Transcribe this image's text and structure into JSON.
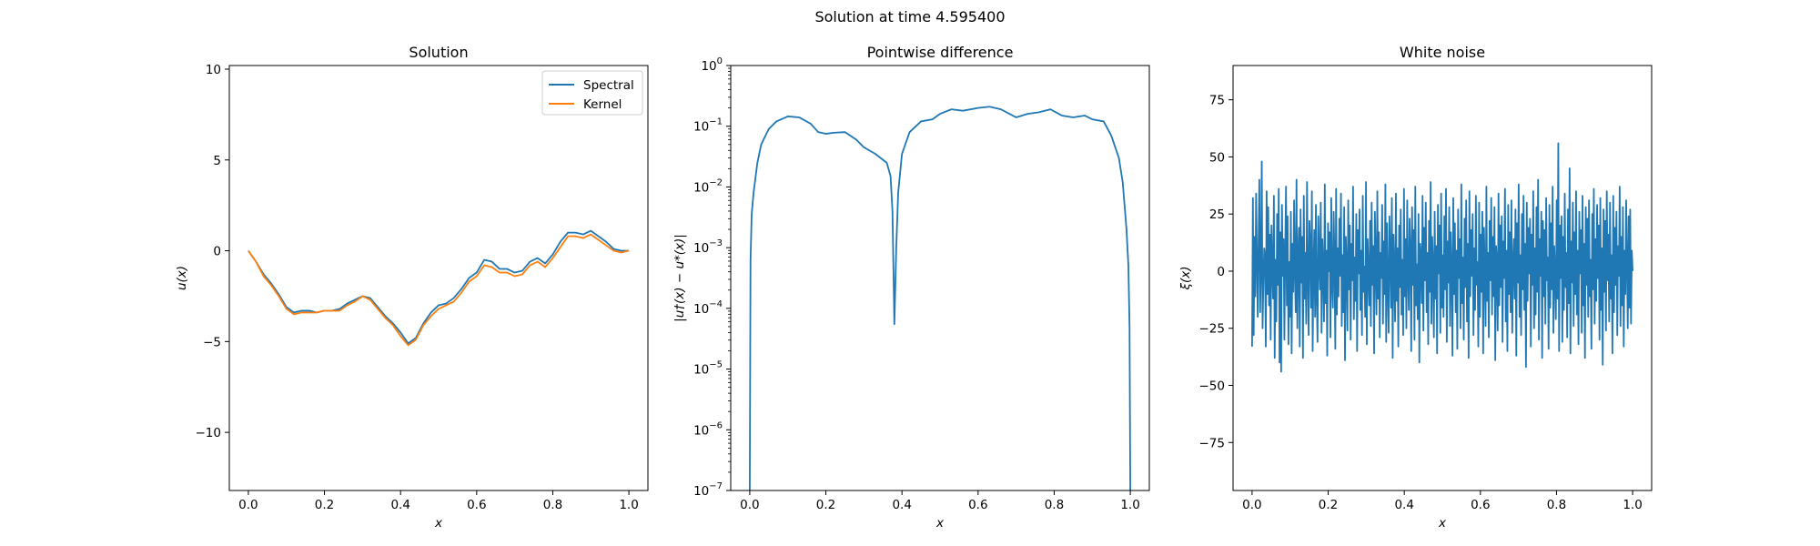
{
  "suptitle": "Solution at time 4.595400",
  "colors": {
    "spectral": "#1f77b4",
    "kernel": "#ff7f0e",
    "noise": "#1f77b4",
    "diff": "#1f77b4"
  },
  "chart_data": [
    {
      "type": "line",
      "title": "Solution",
      "xlabel": "x",
      "ylabel": "u(x)",
      "xlim": [
        -0.05,
        1.05
      ],
      "ylim": [
        -13.2,
        10.2
      ],
      "xticks": [
        "0.0",
        "0.2",
        "0.4",
        "0.6",
        "0.8",
        "1.0"
      ],
      "yticks": [
        "10",
        "5",
        "0",
        "−5",
        "−10"
      ],
      "legend_position": "top-right",
      "x": [
        0.0,
        0.02,
        0.04,
        0.06,
        0.08,
        0.1,
        0.12,
        0.14,
        0.16,
        0.18,
        0.2,
        0.22,
        0.24,
        0.26,
        0.28,
        0.3,
        0.32,
        0.34,
        0.36,
        0.38,
        0.4,
        0.42,
        0.44,
        0.46,
        0.48,
        0.5,
        0.52,
        0.54,
        0.56,
        0.58,
        0.6,
        0.62,
        0.64,
        0.66,
        0.68,
        0.7,
        0.72,
        0.74,
        0.76,
        0.78,
        0.8,
        0.82,
        0.84,
        0.86,
        0.88,
        0.9,
        0.92,
        0.94,
        0.96,
        0.98,
        1.0
      ],
      "series": [
        {
          "name": "Spectral",
          "values": [
            0.0,
            -0.6,
            -1.3,
            -1.8,
            -2.4,
            -3.1,
            -3.4,
            -3.3,
            -3.3,
            -3.4,
            -3.3,
            -3.3,
            -3.2,
            -2.9,
            -2.7,
            -2.5,
            -2.6,
            -3.1,
            -3.6,
            -4.0,
            -4.5,
            -5.1,
            -4.8,
            -4.0,
            -3.4,
            -3.0,
            -2.9,
            -2.6,
            -2.1,
            -1.5,
            -1.2,
            -0.5,
            -0.6,
            -1.0,
            -1.0,
            -1.2,
            -1.1,
            -0.6,
            -0.4,
            -0.7,
            -0.2,
            0.5,
            1.0,
            1.0,
            0.9,
            1.1,
            0.8,
            0.5,
            0.1,
            0.0,
            0.0
          ]
        },
        {
          "name": "Kernel",
          "values": [
            0.0,
            -0.6,
            -1.4,
            -1.9,
            -2.5,
            -3.2,
            -3.5,
            -3.4,
            -3.4,
            -3.4,
            -3.3,
            -3.3,
            -3.3,
            -3.0,
            -2.8,
            -2.5,
            -2.7,
            -3.2,
            -3.7,
            -4.1,
            -4.7,
            -5.2,
            -4.9,
            -4.1,
            -3.6,
            -3.2,
            -3.0,
            -2.8,
            -2.3,
            -1.7,
            -1.4,
            -0.8,
            -0.9,
            -1.2,
            -1.2,
            -1.4,
            -1.3,
            -0.8,
            -0.6,
            -0.9,
            -0.4,
            0.2,
            0.8,
            0.8,
            0.7,
            0.9,
            0.6,
            0.3,
            0.0,
            -0.1,
            0.0
          ]
        }
      ]
    },
    {
      "type": "line",
      "title": "Pointwise difference",
      "xlabel": "x",
      "ylabel": "|u†(x) − u*(x)|",
      "yscale": "log",
      "xlim": [
        -0.05,
        1.05
      ],
      "ylim": [
        1e-07,
        1
      ],
      "xticks": [
        "0.0",
        "0.2",
        "0.4",
        "0.6",
        "0.8",
        "1.0"
      ],
      "yticks": [
        {
          "base": "10",
          "exp": "0"
        },
        {
          "base": "10",
          "exp": "−1"
        },
        {
          "base": "10",
          "exp": "−2"
        },
        {
          "base": "10",
          "exp": "−3"
        },
        {
          "base": "10",
          "exp": "−4"
        },
        {
          "base": "10",
          "exp": "−5"
        },
        {
          "base": "10",
          "exp": "−6"
        },
        {
          "base": "10",
          "exp": "−7"
        }
      ],
      "x": [
        0.0,
        0.002,
        0.005,
        0.01,
        0.02,
        0.03,
        0.05,
        0.07,
        0.1,
        0.13,
        0.16,
        0.18,
        0.2,
        0.22,
        0.25,
        0.28,
        0.3,
        0.33,
        0.36,
        0.37,
        0.375,
        0.38,
        0.385,
        0.39,
        0.4,
        0.42,
        0.45,
        0.48,
        0.5,
        0.53,
        0.56,
        0.6,
        0.63,
        0.66,
        0.7,
        0.73,
        0.76,
        0.79,
        0.82,
        0.85,
        0.88,
        0.9,
        0.93,
        0.95,
        0.97,
        0.98,
        0.99,
        0.995,
        0.998,
        1.0
      ],
      "y": [
        1e-07,
        0.0006,
        0.0035,
        0.008,
        0.025,
        0.05,
        0.09,
        0.12,
        0.145,
        0.14,
        0.11,
        0.08,
        0.075,
        0.078,
        0.08,
        0.06,
        0.045,
        0.035,
        0.025,
        0.015,
        0.004,
        5.5e-05,
        0.001,
        0.008,
        0.035,
        0.08,
        0.12,
        0.13,
        0.16,
        0.19,
        0.18,
        0.2,
        0.21,
        0.19,
        0.14,
        0.16,
        0.17,
        0.19,
        0.15,
        0.14,
        0.15,
        0.13,
        0.12,
        0.07,
        0.03,
        0.012,
        0.002,
        0.0005,
        5e-05,
        1e-07
      ]
    },
    {
      "type": "line",
      "title": "White noise",
      "xlabel": "x",
      "ylabel": "ξ(x)",
      "xlim": [
        -0.05,
        1.05
      ],
      "ylim": [
        -96,
        90
      ],
      "xticks": [
        "0.0",
        "0.2",
        "0.4",
        "0.6",
        "0.8",
        "1.0"
      ],
      "yticks": [
        "75",
        "50",
        "25",
        "0",
        "−25",
        "−50",
        "−75"
      ],
      "x_range": [
        0,
        1
      ],
      "values": [
        -33,
        32,
        -28,
        15,
        -11,
        34,
        5,
        -20,
        12,
        40,
        -18,
        2,
        48,
        -25,
        -5,
        10,
        7,
        -33,
        35,
        -10,
        28,
        -15,
        16,
        -30,
        20,
        1,
        -12,
        33,
        -38,
        5,
        -22,
        25,
        -6,
        36,
        -40,
        17,
        -44,
        29,
        -2,
        14,
        -30,
        8,
        37,
        -15,
        24,
        -32,
        4,
        -20,
        26,
        -36,
        12,
        -9,
        31,
        0,
        -18,
        40,
        -25,
        6,
        19,
        -33,
        27,
        -5,
        15,
        -38,
        33,
        -12,
        8,
        -23,
        39,
        -1,
        -28,
        22,
        11,
        -16,
        35,
        -35,
        2,
        18,
        -20,
        29,
        -10,
        -31,
        24,
        4,
        -8,
        30,
        -27,
        14,
        1,
        -22,
        38,
        -14,
        9,
        -37,
        21,
        0,
        17,
        -29,
        32,
        -6,
        -16,
        26,
        5,
        -34,
        36,
        -19,
        10,
        -11,
        23,
        -2,
        34,
        -24,
        7,
        -18,
        28,
        -39,
        15,
        3,
        -26,
        31,
        -8,
        20,
        -30,
        12,
        -4,
        37,
        -21,
        6,
        -13,
        25,
        -35,
        18,
        -1,
        27,
        -17,
        9,
        -28,
        33,
        -9,
        2,
        -20,
        39,
        -32,
        14,
        0,
        -15,
        22,
        -24,
        30,
        -6,
        11,
        -36,
        26,
        4,
        -19,
        35,
        -12,
        17,
        -29,
        8,
        -3,
        29,
        -23,
        13,
        -10,
        38,
        -31,
        21,
        -5,
        -27,
        24,
        7,
        -16,
        32,
        -38,
        16,
        1,
        -22,
        34,
        -13,
        10,
        -33,
        20,
        -7,
        27,
        -19,
        5,
        -28,
        36,
        -11,
        14,
        -25,
        31,
        -2,
        -17,
        23,
        9,
        -35,
        28,
        -6,
        18,
        -30,
        37,
        -15,
        3,
        -21,
        25,
        -40,
        12,
        6,
        -14,
        33,
        -26,
        19,
        -4,
        30,
        -18,
        8,
        -32,
        22,
        -9,
        39,
        -23,
        15,
        2,
        -29,
        26,
        -12,
        11,
        -36,
        29,
        -1,
        20,
        -27,
        34,
        -16,
        7,
        -20,
        24,
        -8,
        36,
        -31,
        13,
        -5,
        28,
        -24,
        17,
        0,
        -37,
        32,
        -10,
        21,
        -18,
        9,
        -34,
        27,
        -3,
        14,
        -25,
        38,
        -14,
        6,
        -30,
        23,
        -7,
        31,
        -22,
        12,
        -38,
        35,
        -11,
        18,
        -2,
        25,
        -28,
        10,
        -17,
        33,
        -6,
        4,
        -33,
        30,
        -20,
        16,
        -9,
        26,
        -36,
        19,
        1,
        -24,
        37,
        -13,
        8,
        -29,
        22,
        -4,
        32,
        -19,
        15,
        -11,
        28,
        -39,
        11,
        5,
        -26,
        34,
        -15,
        20,
        -7,
        24,
        -31,
        13,
        -3,
        36,
        -22,
        9,
        -35,
        29,
        -10,
        17,
        -18,
        31,
        -27,
        3,
        14,
        -12,
        27,
        -37,
        21,
        -5,
        38,
        -20,
        7,
        -28,
        25,
        -8,
        33,
        -17,
        12,
        -42,
        30,
        -13,
        19,
        -1,
        23,
        -33,
        16,
        -6,
        35,
        -25,
        10,
        -19,
        28,
        -9,
        40,
        -30,
        14,
        -2,
        26,
        -38,
        22,
        -11,
        18,
        -23,
        32,
        -4,
        6,
        -34,
        29,
        -16,
        21,
        -8,
        37,
        -27,
        11,
        0,
        -21,
        31,
        -12,
        56,
        -35,
        20,
        -3,
        24,
        -31,
        15,
        -17,
        34,
        -7,
        8,
        -29,
        27,
        -14,
        45,
        -36,
        13,
        -5,
        30,
        -24,
        17,
        -10,
        35,
        -19,
        9,
        -32,
        26,
        -1,
        18,
        -27,
        33,
        -15,
        12,
        -38,
        28,
        -6,
        23,
        -20,
        31,
        -11,
        5,
        -34,
        25,
        -8,
        36,
        -23,
        14,
        -13,
        29,
        -3,
        20,
        -30,
        32,
        -17,
        10,
        -41,
        27,
        -9,
        22,
        -26,
        35,
        -4,
        16,
        -22,
        30,
        -12,
        7,
        -36,
        33,
        -18,
        19,
        -6,
        26,
        -28,
        11,
        -2,
        37,
        -24,
        15,
        -15,
        28,
        -33,
        9,
        -10,
        31,
        2,
        -25,
        24,
        -16,
        27,
        -23,
        9,
        0
      ]
    }
  ]
}
